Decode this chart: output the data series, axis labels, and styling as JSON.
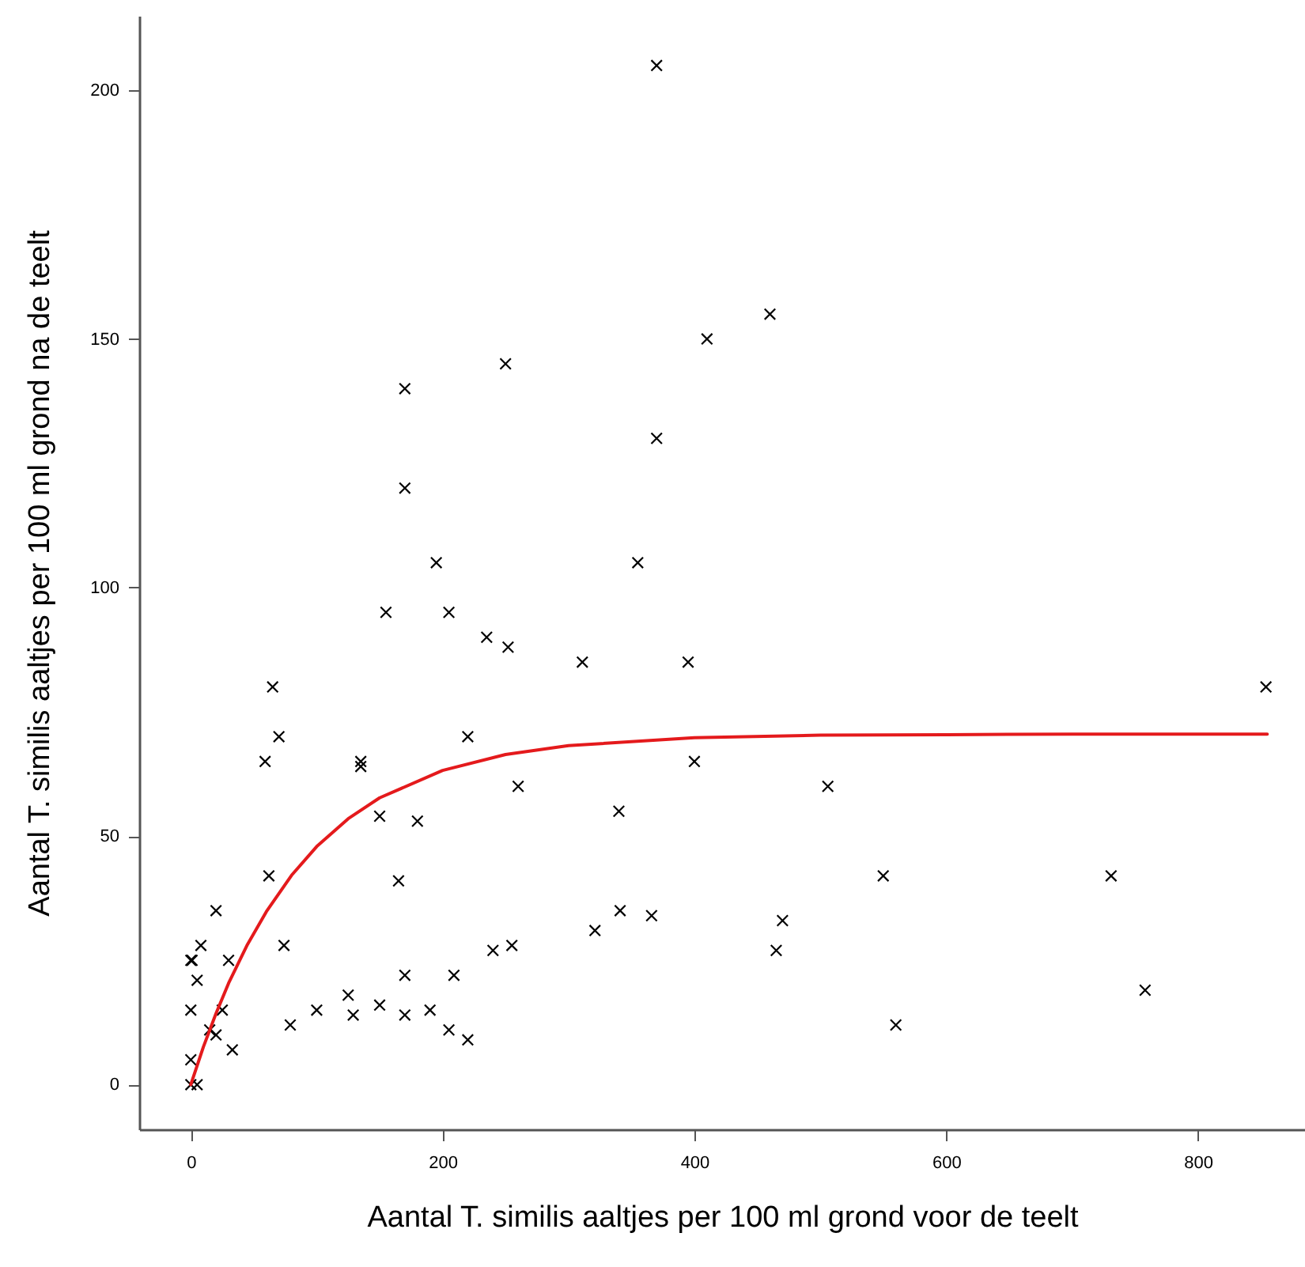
{
  "chart_data": {
    "type": "scatter",
    "xlabel": "Aantal T. similis aaltjes per 100 ml grond voor de teelt",
    "ylabel": "Aantal T. similis aaltjes per 100 ml grond na de teelt",
    "xlim": [
      -41,
      885
    ],
    "ylim": [
      -9,
      215
    ],
    "xticks": [
      0,
      200,
      400,
      600,
      800
    ],
    "yticks": [
      0,
      50,
      100,
      150,
      200
    ],
    "grid": false,
    "marker": "cross",
    "series": [
      {
        "color": "#000000",
        "x": [
          250,
          170,
          170,
          195,
          155,
          205,
          235,
          252,
          65,
          70,
          59,
          135,
          135,
          220,
          260,
          150,
          180,
          370,
          460,
          410,
          370,
          355,
          311,
          395,
          400,
          506,
          340,
          550,
          731,
          341,
          366,
          321,
          470,
          465,
          758,
          560,
          854,
          62,
          20,
          8,
          0,
          1,
          30,
          5,
          74,
          0,
          25,
          15,
          20,
          33,
          0,
          0,
          5,
          79,
          100,
          125,
          129,
          150,
          170,
          170,
          190,
          209,
          205,
          220,
          240,
          255,
          165
        ],
        "values": [
          145,
          140,
          120,
          105,
          95,
          95,
          90,
          88,
          80,
          70,
          65,
          65,
          64,
          70,
          60,
          54,
          53,
          205,
          155,
          150,
          130,
          105,
          85,
          85,
          65,
          60,
          55,
          42,
          42,
          35,
          34,
          31,
          33,
          27,
          19,
          12,
          80,
          42,
          35,
          28,
          25,
          25,
          25,
          21,
          28,
          15,
          15,
          11,
          10,
          7,
          5,
          0,
          0,
          12,
          15,
          18,
          14,
          16,
          22,
          14,
          15,
          22,
          11,
          9,
          27,
          28,
          41
        ]
      },
      {
        "type": "line",
        "color": "#e41a1c",
        "marker": "none",
        "x": [
          0,
          10,
          20,
          30,
          45,
          60,
          80,
          100,
          125,
          150,
          200,
          250,
          300,
          400,
          500,
          600,
          700,
          855
        ],
        "values": [
          0,
          7.6,
          14.3,
          20.4,
          28.2,
          34.8,
          42.1,
          47.9,
          53.5,
          57.7,
          63.2,
          66.4,
          68.2,
          69.8,
          70.3,
          70.4,
          70.5,
          70.5
        ]
      }
    ]
  }
}
